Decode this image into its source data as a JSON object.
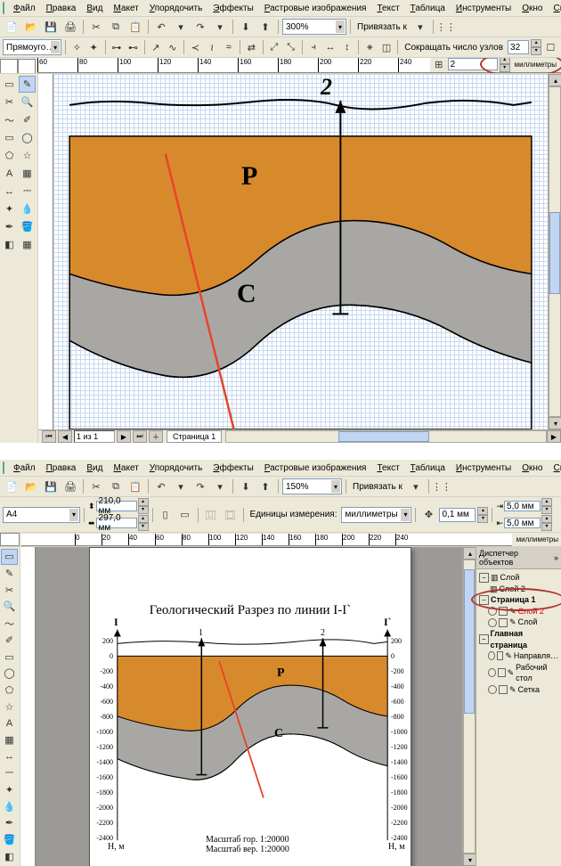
{
  "menus": [
    "Файл",
    "Правка",
    "Вид",
    "Макет",
    "Упорядочить",
    "Эффекты",
    "Растровые изображения",
    "Текст",
    "Таблица",
    "Инструменты",
    "Окно",
    "Справка"
  ],
  "toolbar1": {
    "zoom": "300%",
    "snap_label": "Привязать к"
  },
  "propbar1": {
    "shape": "Прямоуго…",
    "reduce_nodes": "Сокращать число узлов",
    "reduce_val": "32",
    "unit_val": "2",
    "unit_lbl": "миллиметры"
  },
  "ruler1": {
    "start": 60,
    "step": 20,
    "end": 300
  },
  "page1": {
    "page_of": "1 из 1",
    "page_tab": "Страница 1"
  },
  "geology1": {
    "label2": "2",
    "labelP": "P",
    "labelC": "C",
    "colors": {
      "orange": "#d78a2c",
      "grey": "#a9a7a4",
      "line_red": "#e8432a"
    }
  },
  "toolbar2": {
    "zoom": "150%",
    "snap_label": "Привязать к"
  },
  "propbar2": {
    "paper": "A4",
    "w": "210,0 мм",
    "h": "297,0 мм",
    "units_label": "Единицы измерения:",
    "units": "миллиметры",
    "nudge": "0,1 мм",
    "dup_x": "5,0 мм",
    "dup_y": "5,0 мм",
    "right_lbl": "миллиметры"
  },
  "ruler2": {
    "ticks": [
      0,
      20,
      40,
      60,
      80,
      100,
      120,
      140,
      160,
      180,
      200,
      220,
      240
    ]
  },
  "page2": {
    "title": "Геологический Разрез по линии I-I`",
    "leftI": "I",
    "rightI": "I`",
    "lab1": "1",
    "lab2": "2",
    "labP": "P",
    "labC": "C",
    "axisY_vals": [
      200,
      0,
      -200,
      -400,
      -600,
      -800,
      -1000,
      -1200,
      -1400,
      -1600,
      -1800,
      -2000,
      -2200,
      -2400
    ],
    "axisY_label": "H, м",
    "scale_h": "Масштаб гор. 1:20000",
    "scale_v": "Масштаб вер. 1:20000"
  },
  "docker": {
    "title": "Диспетчер объектов",
    "root": "Страница 1",
    "layer_active": "Слой 2",
    "layers": [
      "Слой",
      "Слой 2"
    ],
    "guides": "Направля…",
    "master": "Рабочий стол",
    "grid": "Сетка"
  },
  "colors": {
    "orange": "#d78a2c",
    "grey": "#a9a7a4",
    "red": "#e8432a"
  }
}
